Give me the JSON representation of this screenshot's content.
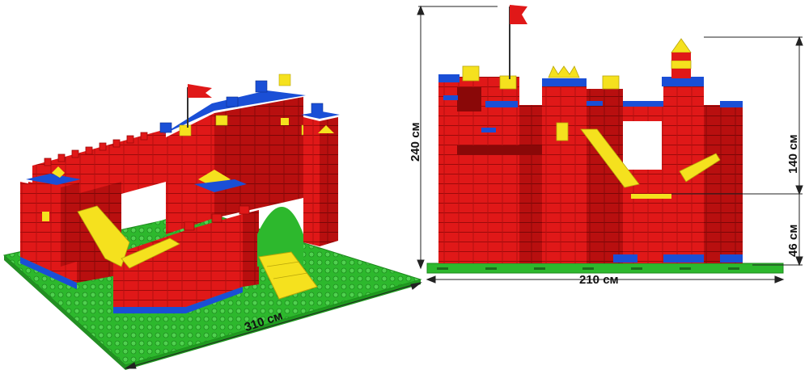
{
  "dimensions": {
    "iso_width": "310 см",
    "front_width": "210 см",
    "total_height": "240 см",
    "wall_height": "140 см",
    "gate_height": "46 см"
  },
  "colors": {
    "brick_red": "#e01818",
    "brick_red_dark": "#a80c0c",
    "brick_blue": "#1a4fd6",
    "brick_yellow": "#f5e11e",
    "baseplate_green": "#2db82d",
    "flag_red": "#e01818"
  }
}
